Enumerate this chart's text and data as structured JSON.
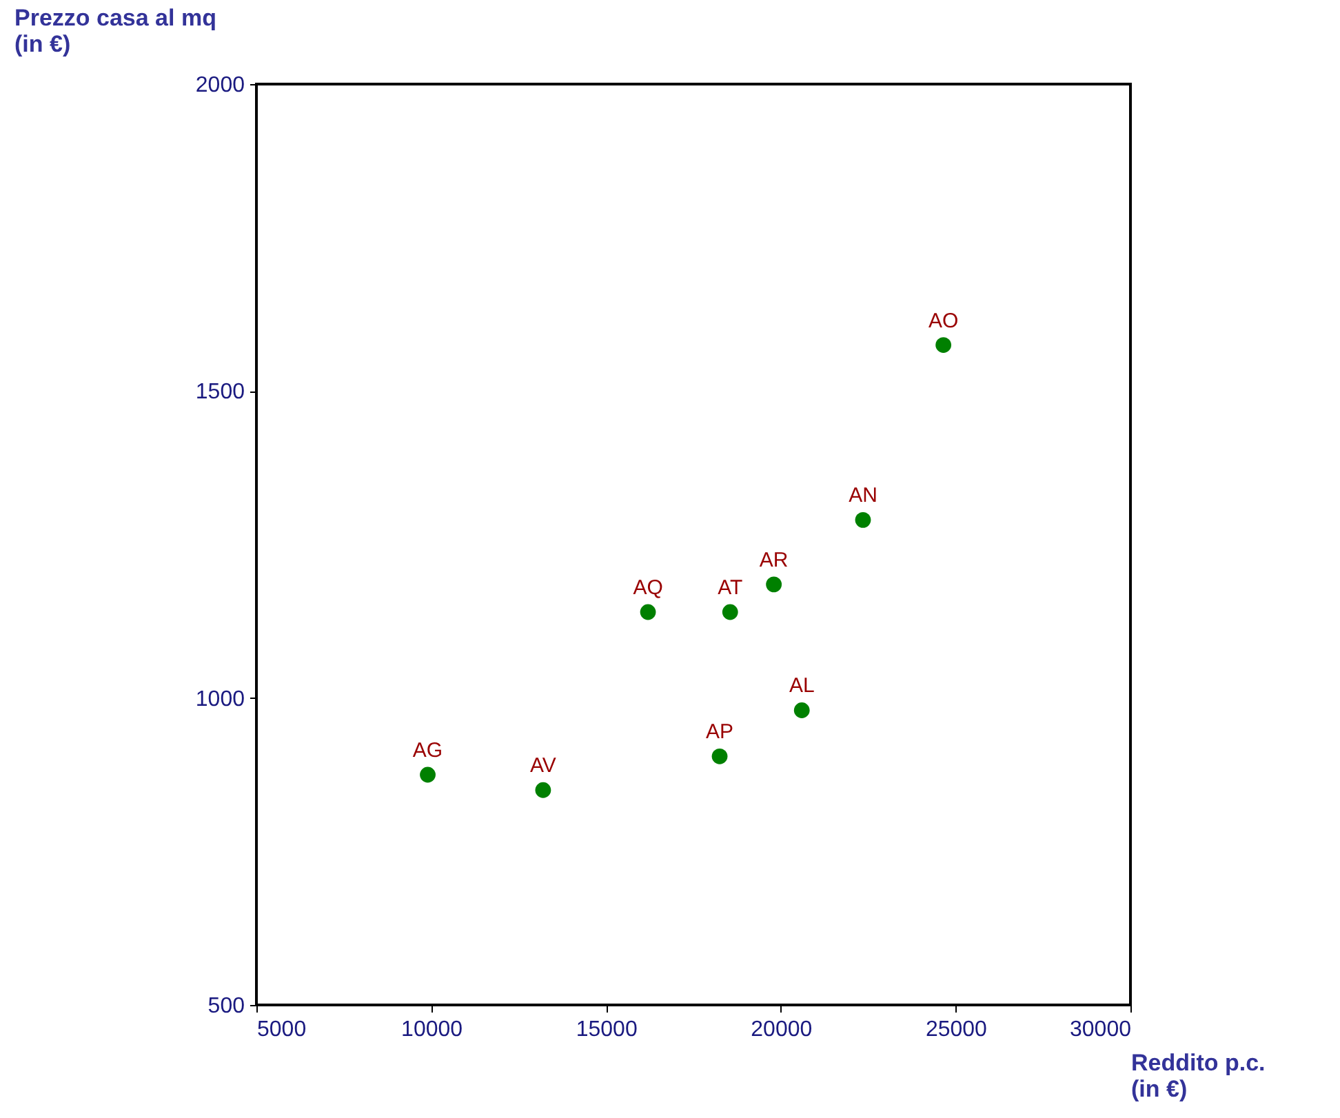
{
  "chart_data": {
    "type": "scatter",
    "xlabel": "Reddito p.c.\n(in €)",
    "ylabel": "Prezzo casa al mq\n(in €)",
    "x": [
      9900,
      13200,
      16200,
      18550,
      18250,
      19800,
      20600,
      22350,
      24650
    ],
    "values": [
      875,
      850,
      1140,
      1140,
      905,
      1185,
      980,
      1290,
      1575
    ],
    "color": "#008000",
    "marker": "circle",
    "xlim": [
      5000,
      30000
    ],
    "xticks": [
      5000,
      10000,
      15000,
      20000,
      25000,
      30000
    ],
    "ylim": [
      500,
      2000
    ],
    "yticks": [
      500,
      1000,
      1500,
      2000
    ],
    "grid": false,
    "annotations": [
      {
        "text": "AG",
        "x": 9900,
        "y": 875
      },
      {
        "text": "AV",
        "x": 13200,
        "y": 850
      },
      {
        "text": "AQ",
        "x": 16200,
        "y": 1140
      },
      {
        "text": "AT",
        "x": 18550,
        "y": 1140
      },
      {
        "text": "AP",
        "x": 18250,
        "y": 905
      },
      {
        "text": "AR",
        "x": 19800,
        "y": 1185
      },
      {
        "text": "AL",
        "x": 20600,
        "y": 980
      },
      {
        "text": "AN",
        "x": 22350,
        "y": 1290
      },
      {
        "text": "AO",
        "x": 24650,
        "y": 1575
      }
    ]
  }
}
